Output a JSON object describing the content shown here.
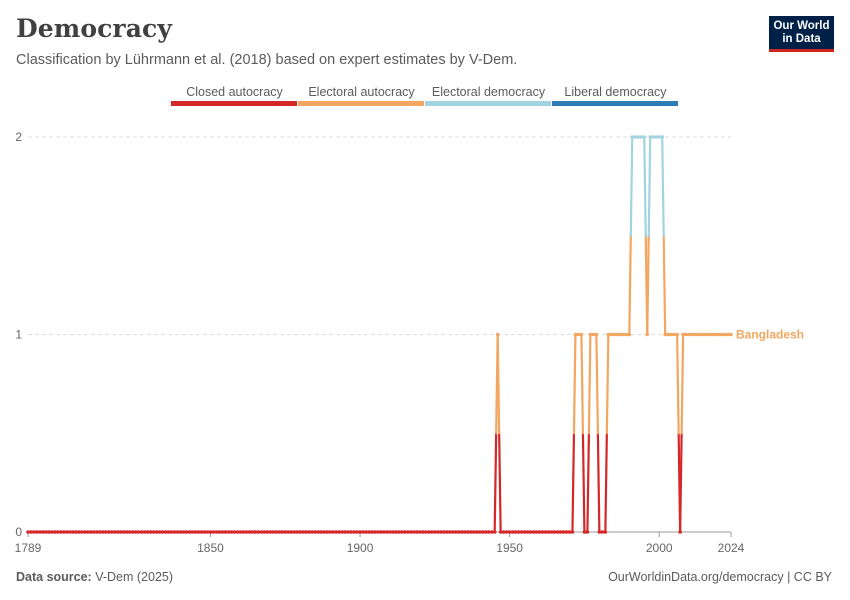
{
  "header": {
    "title": "Democracy",
    "subtitle": "Classification by Lührmann et al. (2018) based on expert estimates by V-Dem.",
    "logo_line1": "Our World",
    "logo_line2": "in Data"
  },
  "legend": [
    {
      "label": "Closed autocracy",
      "color": "#d62728"
    },
    {
      "label": "Electoral autocracy",
      "color": "#f2a660"
    },
    {
      "label": "Electoral democracy",
      "color": "#a2d3e0"
    },
    {
      "label": "Liberal democracy",
      "color": "#2d7cb3"
    }
  ],
  "footer": {
    "source_label": "Data source:",
    "source_value": "V-Dem (2025)",
    "right": "OurWorldinData.org/democracy | CC BY"
  },
  "chart_data": {
    "type": "line",
    "title": "Democracy",
    "xlabel": "",
    "ylabel": "",
    "xlim": [
      1789,
      2024
    ],
    "ylim": [
      0,
      2
    ],
    "x_ticks": [
      1789,
      1850,
      1900,
      1950,
      2000,
      2024
    ],
    "y_ticks": [
      0,
      1,
      2
    ],
    "series": [
      {
        "name": "Bangladesh",
        "color": "#f2a660",
        "segments": [
          {
            "start": 1789,
            "end": 1945,
            "value": 0
          },
          {
            "start": 1946,
            "end": 1946,
            "value": 1
          },
          {
            "start": 1947,
            "end": 1971,
            "value": 0
          },
          {
            "start": 1972,
            "end": 1974,
            "value": 1
          },
          {
            "start": 1975,
            "end": 1976,
            "value": 0
          },
          {
            "start": 1977,
            "end": 1979,
            "value": 1
          },
          {
            "start": 1980,
            "end": 1982,
            "value": 0
          },
          {
            "start": 1983,
            "end": 1990,
            "value": 1
          },
          {
            "start": 1991,
            "end": 1995,
            "value": 2
          },
          {
            "start": 1996,
            "end": 1996,
            "value": 1
          },
          {
            "start": 1997,
            "end": 2001,
            "value": 2
          },
          {
            "start": 2002,
            "end": 2006,
            "value": 1
          },
          {
            "start": 2007,
            "end": 2007,
            "value": 0
          },
          {
            "start": 2008,
            "end": 2024,
            "value": 1
          }
        ]
      }
    ]
  }
}
